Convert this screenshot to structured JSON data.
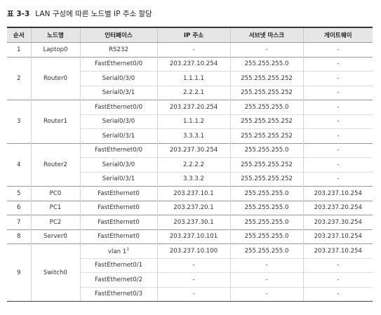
{
  "caption": {
    "number": "표 3-3",
    "title": "LAN 구성에 따른 노드별 IP 주소 할당"
  },
  "table": {
    "headers": [
      "순서",
      "노드명",
      "인터페이스",
      "IP 주소",
      "서브넷 마스크",
      "게이트웨이"
    ],
    "groups": [
      {
        "order": "1",
        "node": "Laptop0",
        "rows": [
          {
            "iface": "RS232",
            "ip": "-",
            "mask": "-",
            "gw": "-"
          }
        ]
      },
      {
        "order": "2",
        "node": "Router0",
        "rows": [
          {
            "iface": "FastEthernet0/0",
            "ip": "203.237.10.254",
            "mask": "255.255.255.0",
            "gw": "-"
          },
          {
            "iface": "Serial0/3/0",
            "ip": "1.1.1.1",
            "mask": "255.255.255.252",
            "gw": "-"
          },
          {
            "iface": "Serial0/3/1",
            "ip": "2.2.2.1",
            "mask": "255.255.255.252",
            "gw": "-"
          }
        ]
      },
      {
        "order": "3",
        "node": "Router1",
        "rows": [
          {
            "iface": "FastEthernet0/0",
            "ip": "203.237.20.254",
            "mask": "255.255.255.0",
            "gw": "-"
          },
          {
            "iface": "Serial0/3/0",
            "ip": "1.1.1.2",
            "mask": "255.255.255.252",
            "gw": "-"
          },
          {
            "iface": "Serial0/3/1",
            "ip": "3.3.3.1",
            "mask": "255.255.255.252",
            "gw": "-"
          }
        ]
      },
      {
        "order": "4",
        "node": "Router2",
        "rows": [
          {
            "iface": "FastEthernet0/0",
            "ip": "203.237.30.254",
            "mask": "255.255.255.0",
            "gw": "-"
          },
          {
            "iface": "Serial0/3/0",
            "ip": "2.2.2.2",
            "mask": "255.255.255.252",
            "gw": "-"
          },
          {
            "iface": "Serial0/3/1",
            "ip": "3.3.3.2",
            "mask": "255.255.255.252",
            "gw": "-"
          }
        ]
      },
      {
        "order": "5",
        "node": "PC0",
        "rows": [
          {
            "iface": "FastEthernet0",
            "ip": "203.237.10.1",
            "mask": "255.255.255.0",
            "gw": "203.237.10.254"
          }
        ]
      },
      {
        "order": "6",
        "node": "PC1",
        "rows": [
          {
            "iface": "FastEthernet0",
            "ip": "203.237.20.1",
            "mask": "255.255.255.0",
            "gw": "203.237.20.254"
          }
        ]
      },
      {
        "order": "7",
        "node": "PC2",
        "rows": [
          {
            "iface": "FastEthernet0",
            "ip": "203.237.30.1",
            "mask": "255.255.255.0",
            "gw": "203.237.30.254"
          }
        ]
      },
      {
        "order": "8",
        "node": "Server0",
        "rows": [
          {
            "iface": "FastEthernet0",
            "ip": "203.237.10.101",
            "mask": "255.255.255.0",
            "gw": "203.237.10.254"
          }
        ]
      },
      {
        "order": "9",
        "node": "Switch0",
        "rows": [
          {
            "iface": "vlan 1",
            "sup": "1",
            "ip": "203.237.10.100",
            "mask": "255.255.255.0",
            "gw": "203.237.10.254"
          },
          {
            "iface": "FastEthernet0/1",
            "ip": "-",
            "mask": "-",
            "gw": "-"
          },
          {
            "iface": "FastEthernet0/2",
            "ip": "-",
            "mask": "-",
            "gw": "-"
          },
          {
            "iface": "FastEthernet0/3",
            "ip": "-",
            "mask": "-",
            "gw": "-"
          }
        ]
      }
    ]
  }
}
